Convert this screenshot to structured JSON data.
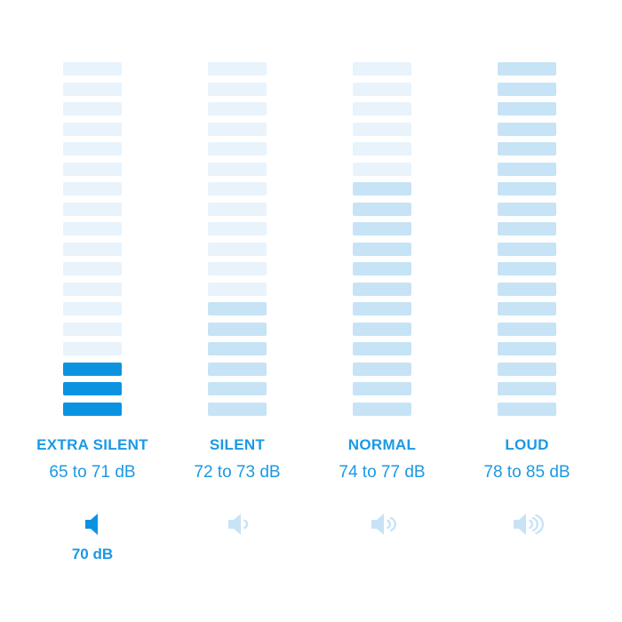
{
  "colors": {
    "background": "#ffffff",
    "bar_light": "#e8f3fc",
    "bar_medium": "#c7e3f6",
    "bar_solid": "#0b93e2",
    "text_blue": "#1b99e4",
    "icon_light": "#c7e3f6",
    "icon_solid": "#0b93e2"
  },
  "columns": [
    {
      "id": "extra-silent",
      "title": "EXTRA SILENT",
      "range_label": "65 to 71 dB",
      "bars_total": 18,
      "bars_filled": 3,
      "filled_style": "solid",
      "empty_style": "light",
      "speaker_waves": 0,
      "speaker_style": "solid",
      "current_level_label": "70 dB"
    },
    {
      "id": "silent",
      "title": "SILENT",
      "range_label": "72 to 73 dB",
      "bars_total": 18,
      "bars_filled": 6,
      "filled_style": "medium",
      "empty_style": "light",
      "speaker_waves": 1,
      "speaker_style": "light",
      "current_level_label": ""
    },
    {
      "id": "normal",
      "title": "NORMAL",
      "range_label": "74 to 77 dB",
      "bars_total": 18,
      "bars_filled": 12,
      "filled_style": "medium",
      "empty_style": "light",
      "speaker_waves": 2,
      "speaker_style": "light",
      "current_level_label": ""
    },
    {
      "id": "loud",
      "title": "LOUD",
      "range_label": "78 to 85 dB",
      "bars_total": 18,
      "bars_filled": 18,
      "filled_style": "medium",
      "empty_style": "light",
      "speaker_waves": 3,
      "speaker_style": "light",
      "current_level_label": ""
    }
  ],
  "chart_data": {
    "type": "bar",
    "title": "",
    "units": "dB",
    "categories": [
      "EXTRA SILENT",
      "SILENT",
      "NORMAL",
      "LOUD"
    ],
    "range_labels": [
      "65 to 71 dB",
      "72 to 73 dB",
      "74 to 77 dB",
      "78 to 85 dB"
    ],
    "db_min": [
      65,
      72,
      74,
      78
    ],
    "db_max": [
      71,
      73,
      77,
      85
    ],
    "segments_total": 18,
    "segments_highlighted": [
      3,
      6,
      12,
      18
    ],
    "highlight_direction": "bottom-up",
    "selected_category": "EXTRA SILENT",
    "selected_value_label": "70 dB",
    "speaker_wave_counts": [
      0,
      1,
      2,
      3
    ],
    "legend_position": "none",
    "grid": false
  }
}
